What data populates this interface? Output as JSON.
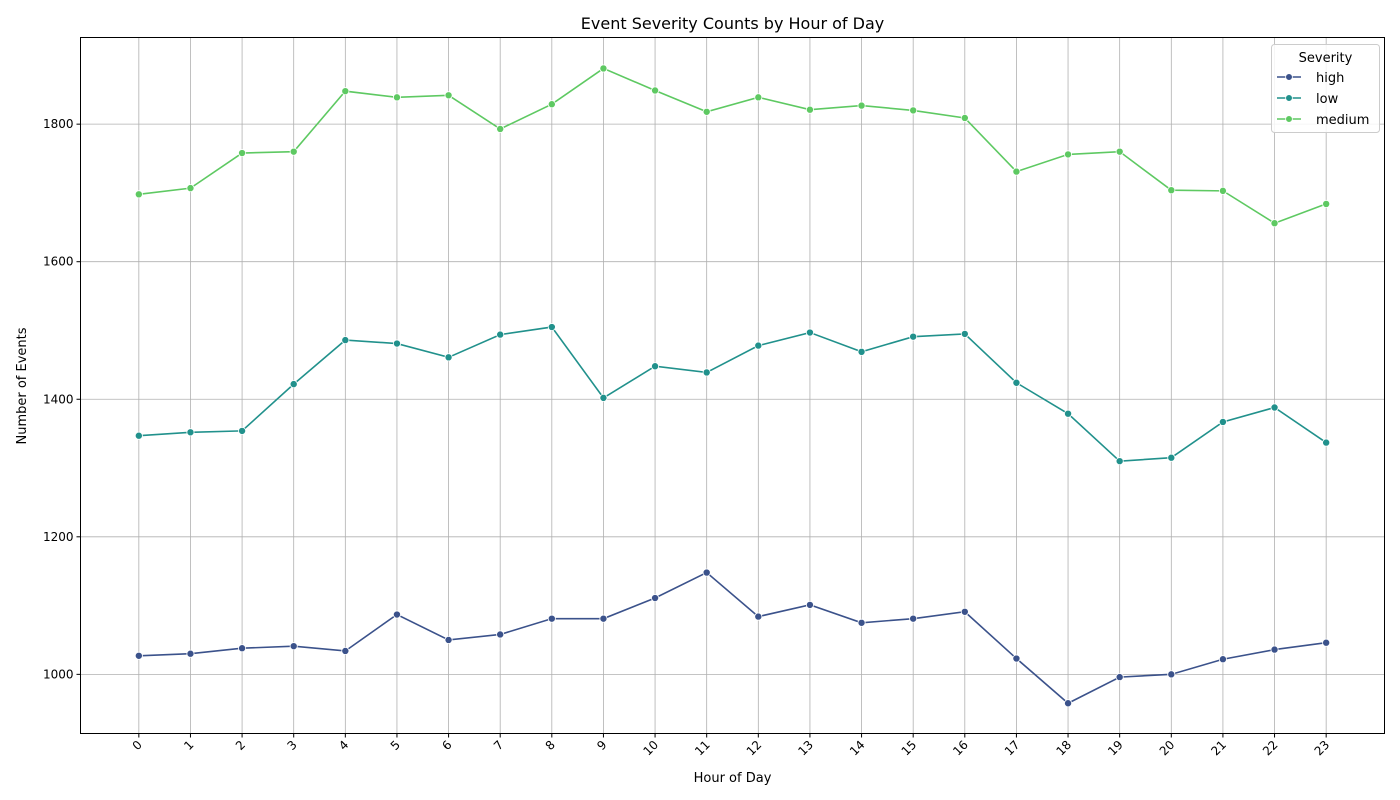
{
  "chart_data": {
    "type": "line",
    "title": "Event Severity Counts by Hour of Day",
    "xlabel": "Hour of Day",
    "ylabel": "Number of Events",
    "x": [
      0,
      1,
      2,
      3,
      4,
      5,
      6,
      7,
      8,
      9,
      10,
      11,
      12,
      13,
      14,
      15,
      16,
      17,
      18,
      19,
      20,
      21,
      22,
      23
    ],
    "x_tick_labels": [
      "0",
      "1",
      "2",
      "3",
      "4",
      "5",
      "6",
      "7",
      "8",
      "9",
      "10",
      "11",
      "12",
      "13",
      "14",
      "15",
      "16",
      "17",
      "18",
      "19",
      "20",
      "21",
      "22",
      "23"
    ],
    "xlim": [
      -1.13,
      24.13
    ],
    "ylim": [
      914,
      1926
    ],
    "y_ticks": [
      1000,
      1200,
      1400,
      1600,
      1800
    ],
    "grid": true,
    "legend": {
      "title": "Severity",
      "placement": "top-right"
    },
    "series": [
      {
        "name": "high",
        "color": "#3b528b",
        "values": [
          1027,
          1030,
          1038,
          1041,
          1034,
          1087,
          1050,
          1058,
          1081,
          1081,
          1111,
          1148,
          1084,
          1101,
          1075,
          1081,
          1091,
          1023,
          958,
          996,
          1000,
          1022,
          1036,
          1046
        ]
      },
      {
        "name": "low",
        "color": "#21918c",
        "values": [
          1347,
          1352,
          1354,
          1422,
          1486,
          1481,
          1461,
          1494,
          1505,
          1402,
          1448,
          1439,
          1478,
          1497,
          1469,
          1491,
          1495,
          1424,
          1379,
          1310,
          1315,
          1367,
          1388,
          1337
        ]
      },
      {
        "name": "medium",
        "color": "#5ec962",
        "values": [
          1698,
          1707,
          1758,
          1760,
          1848,
          1839,
          1842,
          1793,
          1829,
          1881,
          1849,
          1818,
          1839,
          1821,
          1827,
          1820,
          1809,
          1731,
          1756,
          1760,
          1704,
          1703,
          1656,
          1684
        ]
      }
    ]
  }
}
